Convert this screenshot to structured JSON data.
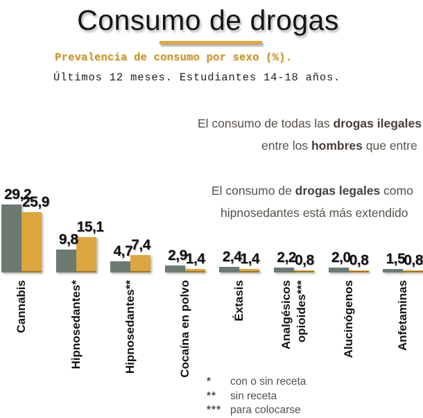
{
  "title": "Consumo de drogas",
  "subtitle_bold": "Prevalencia de consumo por sexo (%).",
  "subtitle": "Últimos 12 meses. Estudiantes 14-18 años.",
  "commentary": {
    "paragraph1": [
      [
        {
          "t": "El consumo de todas las "
        },
        {
          "t": "drogas ilegales",
          "b": true
        }
      ],
      [
        {
          "t": "entre los "
        },
        {
          "t": "hombres",
          "b": true
        },
        {
          "t": " que entre"
        }
      ]
    ],
    "paragraph2": [
      [
        {
          "t": "El consumo de "
        },
        {
          "t": "drogas legales",
          "b": true
        },
        {
          "t": " como"
        }
      ],
      [
        {
          "t": "hipnosedantes está más extendido"
        }
      ]
    ]
  },
  "chart_data": {
    "type": "bar",
    "title": "Prevalencia de consumo por sexo (%). Últimos 12 meses. Estudiantes 14-18 años.",
    "categories": [
      "Cannabis",
      "Hipnosedantes*",
      "Hipnosedantes**",
      "Cocaína en polvo",
      "Éxtasis",
      "Analgésicos\nopioides***",
      "Alucinógenos",
      "Anfetaminas"
    ],
    "series": [
      {
        "key": "gray",
        "color": "#6C7B72",
        "values": [
          29.2,
          9.8,
          4.7,
          2.9,
          2.4,
          2.2,
          2.0,
          1.5
        ]
      },
      {
        "key": "gold",
        "color": "#DCA63F",
        "values": [
          25.9,
          15.1,
          7.4,
          1.4,
          1.4,
          0.8,
          0.8,
          0.8
        ]
      }
    ],
    "value_labels": [
      [
        "29,2",
        "25,9"
      ],
      [
        "9,8",
        "15,1"
      ],
      [
        "4,7",
        "7,4"
      ],
      [
        "2,9",
        "1,4"
      ],
      [
        "2,4",
        "1,4"
      ],
      [
        "2,2",
        "0,8"
      ],
      [
        "2,0",
        "0,8"
      ],
      [
        "1,5",
        "0,8"
      ]
    ],
    "xlabel": "",
    "ylabel": "",
    "ylim": [
      0,
      30
    ],
    "grid": false,
    "legend": "none",
    "axis_lines": false,
    "decimal_separator": ","
  },
  "footnotes": [
    {
      "mark": "*",
      "text": "con o sin receta"
    },
    {
      "mark": "**",
      "text": "sin receta"
    },
    {
      "mark": "***",
      "text": "para colocarse"
    }
  ],
  "colors": {
    "bar_gray": "#6C7B72",
    "bar_gold": "#DCA63F",
    "accent_gold_line": "#E0A943",
    "subtitle_gold": "#C6952C",
    "body_text": "#57504A",
    "label_black": "#131313"
  }
}
